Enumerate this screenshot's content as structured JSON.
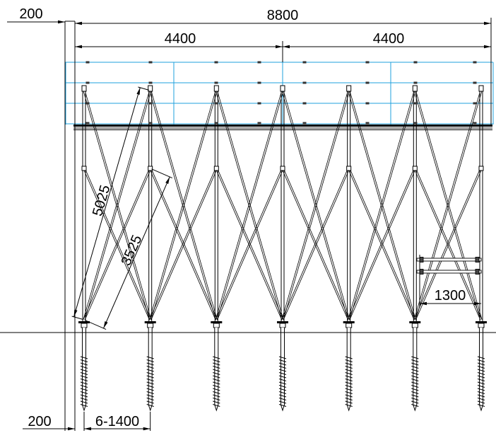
{
  "labels": {
    "top_offset": "200",
    "overall": "8800",
    "span_left": "4400",
    "span_right": "4400",
    "brace_long": "5025",
    "brace_short": "3525",
    "bracket": "1300",
    "bottom_offset": "200",
    "spacing": "6-1400"
  },
  "colors": {
    "line": "#000000",
    "panel_outline": "#1fa0dc",
    "clamp": "#333333",
    "background": "#ffffff"
  }
}
